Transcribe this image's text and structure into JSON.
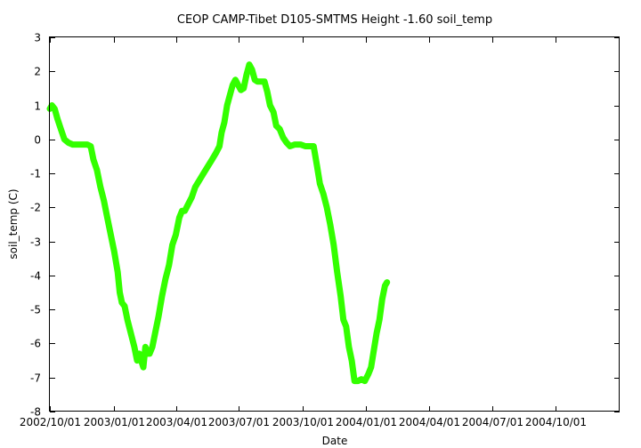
{
  "chart_data": {
    "type": "line",
    "title": "CEOP CAMP-Tibet D105-SMTMS Height -1.60 soil_temp",
    "xlabel": "Date",
    "ylabel": "soil_temp (C)",
    "ylim": [
      -8,
      3
    ],
    "yticks": [
      -8,
      -7,
      -6,
      -5,
      -4,
      -3,
      -2,
      -1,
      0,
      1,
      2,
      3
    ],
    "ytick_labels": [
      "-8",
      "-7",
      "-6",
      "-5",
      "-4",
      "-3",
      "-2",
      "-1",
      "0",
      "1",
      "2",
      "3"
    ],
    "xlim": [
      "2002-10-01",
      "2005-01-01"
    ],
    "xticks": [
      "2002-10-01",
      "2003-01-01",
      "2003-04-01",
      "2003-07-01",
      "2003-10-01",
      "2004-01-01",
      "2004-04-01",
      "2004-07-01",
      "2004-10-01"
    ],
    "xtick_labels": [
      "2002/10/01",
      "2003/01/01",
      "2003/04/01",
      "2003/07/01",
      "2003/10/01",
      "2004/01/01",
      "2004/04/01",
      "2004/07/01",
      "2004/10/01"
    ],
    "grid": false,
    "series": [
      {
        "color": "#33ff00",
        "points": [
          [
            "2002-10-01",
            0.9
          ],
          [
            "2002-10-04",
            1.0
          ],
          [
            "2002-10-08",
            0.9
          ],
          [
            "2002-10-12",
            0.6
          ],
          [
            "2002-10-17",
            0.3
          ],
          [
            "2002-10-22",
            0.0
          ],
          [
            "2002-10-28",
            -0.1
          ],
          [
            "2002-11-03",
            -0.15
          ],
          [
            "2002-11-10",
            -0.15
          ],
          [
            "2002-11-17",
            -0.15
          ],
          [
            "2002-11-24",
            -0.15
          ],
          [
            "2002-11-29",
            -0.2
          ],
          [
            "2002-12-03",
            -0.6
          ],
          [
            "2002-12-08",
            -0.9
          ],
          [
            "2002-12-13",
            -1.4
          ],
          [
            "2002-12-18",
            -1.8
          ],
          [
            "2002-12-23",
            -2.3
          ],
          [
            "2002-12-28",
            -2.8
          ],
          [
            "2003-01-02",
            -3.3
          ],
          [
            "2003-01-07",
            -3.9
          ],
          [
            "2003-01-10",
            -4.5
          ],
          [
            "2003-01-13",
            -4.8
          ],
          [
            "2003-01-17",
            -4.9
          ],
          [
            "2003-01-21",
            -5.3
          ],
          [
            "2003-01-26",
            -5.7
          ],
          [
            "2003-01-31",
            -6.1
          ],
          [
            "2003-02-04",
            -6.5
          ],
          [
            "2003-02-07",
            -6.3
          ],
          [
            "2003-02-10",
            -6.5
          ],
          [
            "2003-02-13",
            -6.7
          ],
          [
            "2003-02-16",
            -6.1
          ],
          [
            "2003-02-19",
            -6.3
          ],
          [
            "2003-02-22",
            -6.3
          ],
          [
            "2003-02-26",
            -6.1
          ],
          [
            "2003-03-02",
            -5.7
          ],
          [
            "2003-03-07",
            -5.2
          ],
          [
            "2003-03-12",
            -4.6
          ],
          [
            "2003-03-17",
            -4.1
          ],
          [
            "2003-03-22",
            -3.7
          ],
          [
            "2003-03-27",
            -3.1
          ],
          [
            "2003-04-01",
            -2.8
          ],
          [
            "2003-04-06",
            -2.3
          ],
          [
            "2003-04-10",
            -2.1
          ],
          [
            "2003-04-14",
            -2.1
          ],
          [
            "2003-04-19",
            -1.9
          ],
          [
            "2003-04-24",
            -1.7
          ],
          [
            "2003-04-29",
            -1.4
          ],
          [
            "2003-05-05",
            -1.2
          ],
          [
            "2003-05-11",
            -1.0
          ],
          [
            "2003-05-17",
            -0.8
          ],
          [
            "2003-05-23",
            -0.6
          ],
          [
            "2003-05-29",
            -0.4
          ],
          [
            "2003-06-03",
            -0.2
          ],
          [
            "2003-06-06",
            0.2
          ],
          [
            "2003-06-10",
            0.5
          ],
          [
            "2003-06-14",
            1.0
          ],
          [
            "2003-06-18",
            1.3
          ],
          [
            "2003-06-22",
            1.6
          ],
          [
            "2003-06-26",
            1.75
          ],
          [
            "2003-06-30",
            1.6
          ],
          [
            "2003-07-04",
            1.45
          ],
          [
            "2003-07-08",
            1.5
          ],
          [
            "2003-07-12",
            1.9
          ],
          [
            "2003-07-16",
            2.2
          ],
          [
            "2003-07-20",
            2.05
          ],
          [
            "2003-07-24",
            1.75
          ],
          [
            "2003-07-28",
            1.7
          ],
          [
            "2003-08-02",
            1.7
          ],
          [
            "2003-08-07",
            1.7
          ],
          [
            "2003-08-11",
            1.4
          ],
          [
            "2003-08-15",
            1.0
          ],
          [
            "2003-08-20",
            0.8
          ],
          [
            "2003-08-24",
            0.4
          ],
          [
            "2003-08-29",
            0.3
          ],
          [
            "2003-09-03",
            0.05
          ],
          [
            "2003-09-08",
            -0.1
          ],
          [
            "2003-09-13",
            -0.2
          ],
          [
            "2003-09-20",
            -0.15
          ],
          [
            "2003-09-28",
            -0.15
          ],
          [
            "2003-10-05",
            -0.2
          ],
          [
            "2003-10-12",
            -0.2
          ],
          [
            "2003-10-17",
            -0.2
          ],
          [
            "2003-10-22",
            -0.8
          ],
          [
            "2003-10-26",
            -1.3
          ],
          [
            "2003-10-31",
            -1.6
          ],
          [
            "2003-11-05",
            -2.0
          ],
          [
            "2003-11-10",
            -2.5
          ],
          [
            "2003-11-15",
            -3.1
          ],
          [
            "2003-11-20",
            -3.9
          ],
          [
            "2003-11-25",
            -4.6
          ],
          [
            "2003-11-29",
            -5.3
          ],
          [
            "2003-12-03",
            -5.5
          ],
          [
            "2003-12-07",
            -6.1
          ],
          [
            "2003-12-11",
            -6.5
          ],
          [
            "2003-12-15",
            -7.1
          ],
          [
            "2003-12-20",
            -7.1
          ],
          [
            "2003-12-25",
            -7.05
          ],
          [
            "2003-12-30",
            -7.1
          ],
          [
            "2004-01-04",
            -6.9
          ],
          [
            "2004-01-08",
            -6.7
          ],
          [
            "2004-01-12",
            -6.2
          ],
          [
            "2004-01-16",
            -5.7
          ],
          [
            "2004-01-20",
            -5.3
          ],
          [
            "2004-01-24",
            -4.7
          ],
          [
            "2004-01-28",
            -4.3
          ],
          [
            "2004-01-31",
            -4.2
          ]
        ]
      }
    ]
  }
}
